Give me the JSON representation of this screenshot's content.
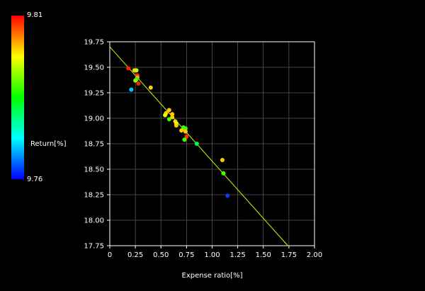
{
  "chart_data": {
    "type": "scatter",
    "title": "",
    "xlabel": "Expense ratio[%]",
    "ylabel": "",
    "xlim": [
      0,
      2.0
    ],
    "ylim": [
      17.75,
      19.75
    ],
    "x_ticks": [
      "0",
      "0.25",
      "0.50",
      "0.75",
      "1.00",
      "1.25",
      "1.50",
      "1.75",
      "2.00"
    ],
    "y_ticks": [
      "17.75",
      "18.00",
      "18.25",
      "18.50",
      "18.75",
      "19.00",
      "19.25",
      "19.50",
      "19.75"
    ],
    "grid": true,
    "colorbar": {
      "label": "Return[%]",
      "max_label": "9.81",
      "min_label": "9.76",
      "min": 9.76,
      "max": 9.81,
      "colors": [
        "#0000ff",
        "#00ffff",
        "#00ff00",
        "#ffff00",
        "#ff0000"
      ]
    },
    "points": [
      {
        "x": 0.18,
        "y": 19.49,
        "color": "#ff2000"
      },
      {
        "x": 0.24,
        "y": 19.47,
        "color": "#ffcc00"
      },
      {
        "x": 0.26,
        "y": 19.47,
        "color": "#c8ff00"
      },
      {
        "x": 0.27,
        "y": 19.42,
        "color": "#ff2000"
      },
      {
        "x": 0.27,
        "y": 19.4,
        "color": "#ffaa00"
      },
      {
        "x": 0.26,
        "y": 19.38,
        "color": "#00ff40"
      },
      {
        "x": 0.25,
        "y": 19.37,
        "color": "#80ff00"
      },
      {
        "x": 0.28,
        "y": 19.34,
        "color": "#ff2000"
      },
      {
        "x": 0.4,
        "y": 19.3,
        "color": "#ffcc00"
      },
      {
        "x": 0.21,
        "y": 19.28,
        "color": "#00c8ff"
      },
      {
        "x": 0.58,
        "y": 19.08,
        "color": "#ffcc00"
      },
      {
        "x": 0.55,
        "y": 19.05,
        "color": "#ffcc00"
      },
      {
        "x": 0.61,
        "y": 19.04,
        "color": "#ffcc00"
      },
      {
        "x": 0.54,
        "y": 19.03,
        "color": "#e0ff00"
      },
      {
        "x": 0.61,
        "y": 19.01,
        "color": "#ffcc00"
      },
      {
        "x": 0.58,
        "y": 18.99,
        "color": "#40ff00"
      },
      {
        "x": 0.64,
        "y": 18.97,
        "color": "#ffcc00"
      },
      {
        "x": 0.65,
        "y": 18.95,
        "color": "#e0ff00"
      },
      {
        "x": 0.65,
        "y": 18.93,
        "color": "#ffcc00"
      },
      {
        "x": 0.72,
        "y": 18.91,
        "color": "#40ff00"
      },
      {
        "x": 0.74,
        "y": 18.9,
        "color": "#40ff00"
      },
      {
        "x": 0.7,
        "y": 18.88,
        "color": "#ffcc00"
      },
      {
        "x": 0.74,
        "y": 18.87,
        "color": "#ffcc00"
      },
      {
        "x": 0.75,
        "y": 18.82,
        "color": "#ff3000"
      },
      {
        "x": 0.73,
        "y": 18.79,
        "color": "#40ff00"
      },
      {
        "x": 0.85,
        "y": 18.75,
        "color": "#00ff40"
      },
      {
        "x": 1.1,
        "y": 18.59,
        "color": "#ffcc00"
      },
      {
        "x": 1.11,
        "y": 18.46,
        "color": "#40ff00"
      },
      {
        "x": 1.15,
        "y": 18.24,
        "color": "#0040ff"
      }
    ],
    "fit_line": {
      "x": [
        0.0,
        1.74
      ],
      "y": [
        19.7,
        17.75
      ],
      "color": "#c8ff00"
    }
  }
}
